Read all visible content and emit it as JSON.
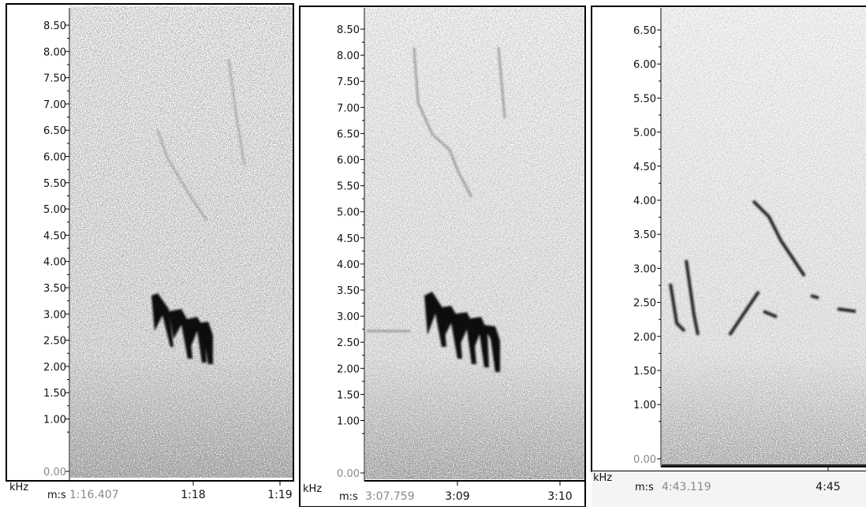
{
  "panels": [
    {
      "yticks": [
        "8.50",
        "8.00",
        "7.50",
        "7.00",
        "6.50",
        "6.00",
        "5.50",
        "5.00",
        "4.50",
        "4.00",
        "3.50",
        "3.00",
        "2.50",
        "2.00",
        "1.50",
        "1.00",
        "0.00"
      ],
      "y_unit": "kHz",
      "x_unit": "m:s",
      "x_start": "1:16.407",
      "xticks": [
        "1:18",
        "1:19"
      ]
    },
    {
      "yticks": [
        "8.50",
        "8.00",
        "7.50",
        "7.00",
        "6.50",
        "6.00",
        "5.50",
        "5.00",
        "4.50",
        "4.00",
        "3.50",
        "3.00",
        "2.50",
        "2.00",
        "1.50",
        "1.00",
        "0.00"
      ],
      "y_unit": "kHz",
      "x_unit": "m:s",
      "x_start": "3:07.759",
      "xticks": [
        "3:09",
        "3:10"
      ]
    },
    {
      "yticks": [
        "6.50",
        "6.00",
        "5.50",
        "5.00",
        "4.50",
        "4.00",
        "3.50",
        "3.00",
        "2.50",
        "2.00",
        "1.50",
        "1.00",
        "0.00"
      ],
      "y_unit": "kHz",
      "x_unit": "m:s",
      "x_start": "4:43.119",
      "xticks": [
        "4:45"
      ]
    }
  ]
}
